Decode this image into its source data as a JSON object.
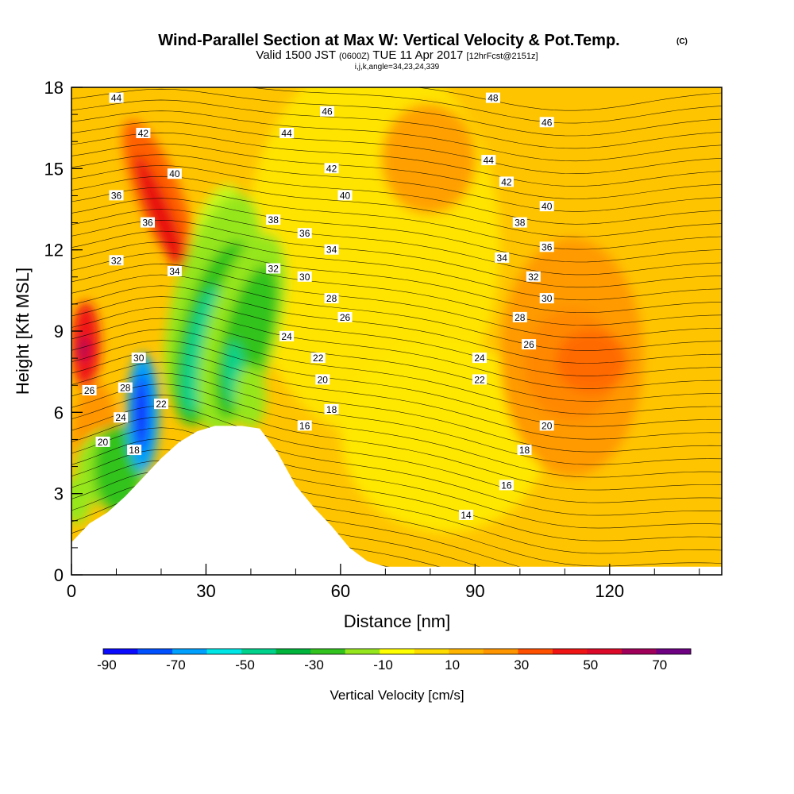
{
  "header": {
    "title_main": "Wind-Parallel Section at Max W: Vertical Velocity & Pot.Temp.",
    "title_mark": "(C)",
    "valid_a": "Valid 1500 JST",
    "valid_b": "(0600Z)",
    "valid_c": "TUE 11 Apr 2017",
    "valid_d": "[12hrFcst@2151z]",
    "indices": "i,j,k,angle=34,23,24,339"
  },
  "chart_data": {
    "type": "heatmap",
    "xlabel": "Distance [nm]",
    "ylabel": "Height [Kft MSL]",
    "xlim": [
      0,
      145
    ],
    "ylim": [
      0,
      18
    ],
    "x_ticks": [
      0,
      30,
      60,
      90,
      120
    ],
    "y_ticks": [
      0,
      3,
      6,
      9,
      12,
      15,
      18
    ],
    "colorbar": {
      "label": "Vertical Velocity [cm/s]",
      "ticks": [
        "-90",
        "-70",
        "-50",
        "-30",
        "-10",
        "10",
        "30",
        "50",
        "70"
      ],
      "levels": [
        -90,
        -80,
        -70,
        -60,
        -50,
        -40,
        -30,
        -20,
        -10,
        0,
        10,
        20,
        30,
        40,
        50,
        60,
        70,
        80
      ],
      "colors": [
        "#0a0aff",
        "#0050ff",
        "#00a0ff",
        "#00e6e6",
        "#00d28c",
        "#00b43c",
        "#32c31e",
        "#96e61e",
        "#ffff00",
        "#ffdc00",
        "#ffb400",
        "#ff9600",
        "#ff5000",
        "#f01414",
        "#dc0a28",
        "#a0005a",
        "#6e0082"
      ]
    },
    "terrain": [
      [
        0,
        1.2
      ],
      [
        4,
        1.9
      ],
      [
        8,
        2.3
      ],
      [
        12,
        2.9
      ],
      [
        16,
        3.6
      ],
      [
        20,
        4.3
      ],
      [
        24,
        4.9
      ],
      [
        28,
        5.3
      ],
      [
        32,
        5.5
      ],
      [
        38,
        5.5
      ],
      [
        42,
        5.4
      ],
      [
        46,
        4.5
      ],
      [
        50,
        3.3
      ],
      [
        54,
        2.5
      ],
      [
        58,
        1.8
      ],
      [
        62,
        1.0
      ],
      [
        66,
        0.5
      ],
      [
        70,
        0.3
      ],
      [
        145,
        0.3
      ]
    ],
    "theta_contours": [
      {
        "label": "14",
        "x": 88,
        "y": 2.2
      },
      {
        "label": "16",
        "x": 52,
        "y": 5.5
      },
      {
        "label": "16",
        "x": 97,
        "y": 3.3
      },
      {
        "label": "18",
        "x": 14,
        "y": 4.6
      },
      {
        "label": "18",
        "x": 58,
        "y": 6.1
      },
      {
        "label": "18",
        "x": 101,
        "y": 4.6
      },
      {
        "label": "20",
        "x": 7,
        "y": 4.9
      },
      {
        "label": "20",
        "x": 56,
        "y": 7.2
      },
      {
        "label": "20",
        "x": 106,
        "y": 5.5
      },
      {
        "label": "22",
        "x": 20,
        "y": 6.3
      },
      {
        "label": "22",
        "x": 55,
        "y": 8.0
      },
      {
        "label": "22",
        "x": 91,
        "y": 7.2
      },
      {
        "label": "24",
        "x": 11,
        "y": 5.8
      },
      {
        "label": "24",
        "x": 48,
        "y": 8.8
      },
      {
        "label": "24",
        "x": 91,
        "y": 8.0
      },
      {
        "label": "26",
        "x": 4,
        "y": 6.8
      },
      {
        "label": "26",
        "x": 61,
        "y": 9.5
      },
      {
        "label": "26",
        "x": 102,
        "y": 8.5
      },
      {
        "label": "28",
        "x": 12,
        "y": 6.9
      },
      {
        "label": "28",
        "x": 58,
        "y": 10.2
      },
      {
        "label": "28",
        "x": 100,
        "y": 9.5
      },
      {
        "label": "30",
        "x": 15,
        "y": 8.0
      },
      {
        "label": "30",
        "x": 52,
        "y": 11.0
      },
      {
        "label": "30",
        "x": 106,
        "y": 10.2
      },
      {
        "label": "32",
        "x": 10,
        "y": 11.6
      },
      {
        "label": "32",
        "x": 45,
        "y": 11.3
      },
      {
        "label": "32",
        "x": 103,
        "y": 11.0
      },
      {
        "label": "34",
        "x": 23,
        "y": 11.2
      },
      {
        "label": "34",
        "x": 58,
        "y": 12.0
      },
      {
        "label": "34",
        "x": 96,
        "y": 11.7
      },
      {
        "label": "36",
        "x": 10,
        "y": 14.0
      },
      {
        "label": "36",
        "x": 17,
        "y": 13.0
      },
      {
        "label": "36",
        "x": 52,
        "y": 12.6
      },
      {
        "label": "36",
        "x": 106,
        "y": 12.1
      },
      {
        "label": "38",
        "x": 45,
        "y": 13.1
      },
      {
        "label": "38",
        "x": 100,
        "y": 13.0
      },
      {
        "label": "40",
        "x": 23,
        "y": 14.8
      },
      {
        "label": "40",
        "x": 61,
        "y": 14.0
      },
      {
        "label": "40",
        "x": 106,
        "y": 13.6
      },
      {
        "label": "42",
        "x": 16,
        "y": 16.3
      },
      {
        "label": "42",
        "x": 58,
        "y": 15.0
      },
      {
        "label": "42",
        "x": 97,
        "y": 14.5
      },
      {
        "label": "44",
        "x": 10,
        "y": 17.6
      },
      {
        "label": "44",
        "x": 48,
        "y": 16.3
      },
      {
        "label": "44",
        "x": 93,
        "y": 15.3
      },
      {
        "label": "46",
        "x": 57,
        "y": 17.1
      },
      {
        "label": "46",
        "x": 106,
        "y": 16.7
      },
      {
        "label": "48",
        "x": 94,
        "y": 17.6
      }
    ]
  }
}
